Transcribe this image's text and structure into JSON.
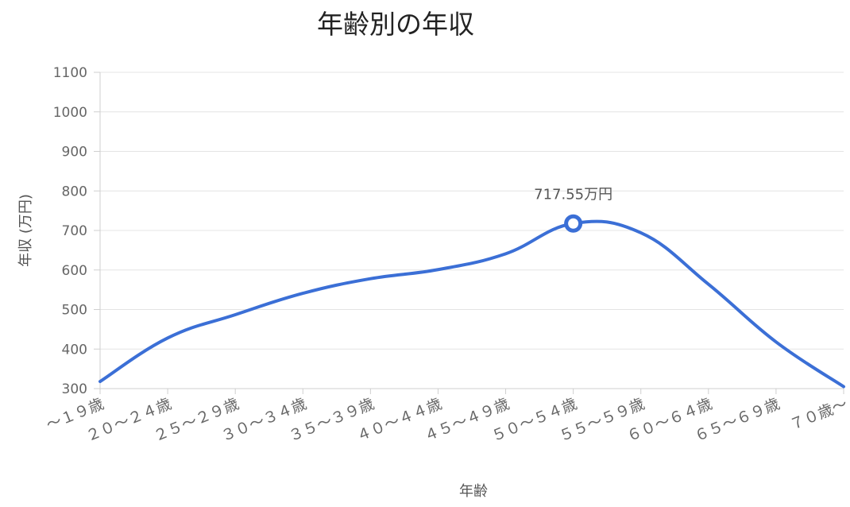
{
  "chart_data": {
    "type": "line",
    "title": "年齢別の年収",
    "xlabel": "年齢",
    "ylabel": "年収 (万円)",
    "ylim": [
      300,
      1100
    ],
    "yticks": [
      300,
      400,
      500,
      600,
      700,
      800,
      900,
      1000,
      1100
    ],
    "grid": true,
    "categories": [
      "～１９歳",
      "２０～２４歳",
      "２５～２９歳",
      "３０～３４歳",
      "３５～３９歳",
      "４０～４４歳",
      "４５～４９歳",
      "５０～５４歳",
      "５５～５９歳",
      "６０～６４歳",
      "６５～６９歳",
      "７０歳～"
    ],
    "series": [
      {
        "values": [
          318,
          428,
          487,
          541,
          578,
          601,
          641,
          717.55,
          694,
          564,
          418,
          305
        ],
        "color": "#3b6fd6"
      }
    ],
    "highlight": {
      "index": 7,
      "label": "717.55万円"
    }
  }
}
